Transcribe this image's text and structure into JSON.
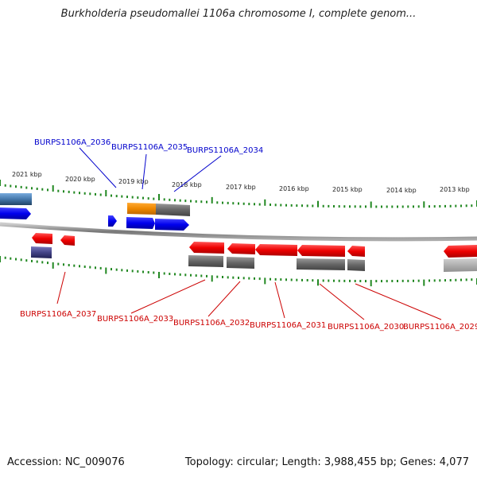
{
  "title": "Burkholderia pseudomallei 1106a chromosome I, complete genom...",
  "footer": {
    "accession": "Accession: NC_009076",
    "stats": "Topology: circular; Length: 3,988,455 bp; Genes: 4,077"
  },
  "colors": {
    "forward_gene": "#0000ee",
    "reverse_gene": "#ee0000",
    "rna_orange": "#ee8800",
    "feature_gray": "#666666",
    "feature_steel": "#4477aa",
    "feature_navy": "#444488",
    "tick_green": "#228822",
    "backbone": "#888888",
    "label_forward": "#0000cc",
    "label_reverse": "#cc0000"
  },
  "ruler": {
    "unit": "kbp",
    "tick_labels": [
      "2021 kbp",
      "2020 kbp",
      "2019 kbp",
      "2018 kbp",
      "2017 kbp",
      "2016 kbp",
      "2015 kbp",
      "2014 kbp",
      "2013 kbp"
    ]
  },
  "genes": {
    "forward_labels": [
      "BURPS1106A_2036",
      "BURPS1106A_2035",
      "BURPS1106A_2034"
    ],
    "reverse_labels": [
      "BURPS1106A_2037",
      "BURPS1106A_2033",
      "BURPS1106A_2032",
      "BURPS1106A_2031",
      "BURPS1106A_2030",
      "BURPS1106A_2029"
    ]
  }
}
